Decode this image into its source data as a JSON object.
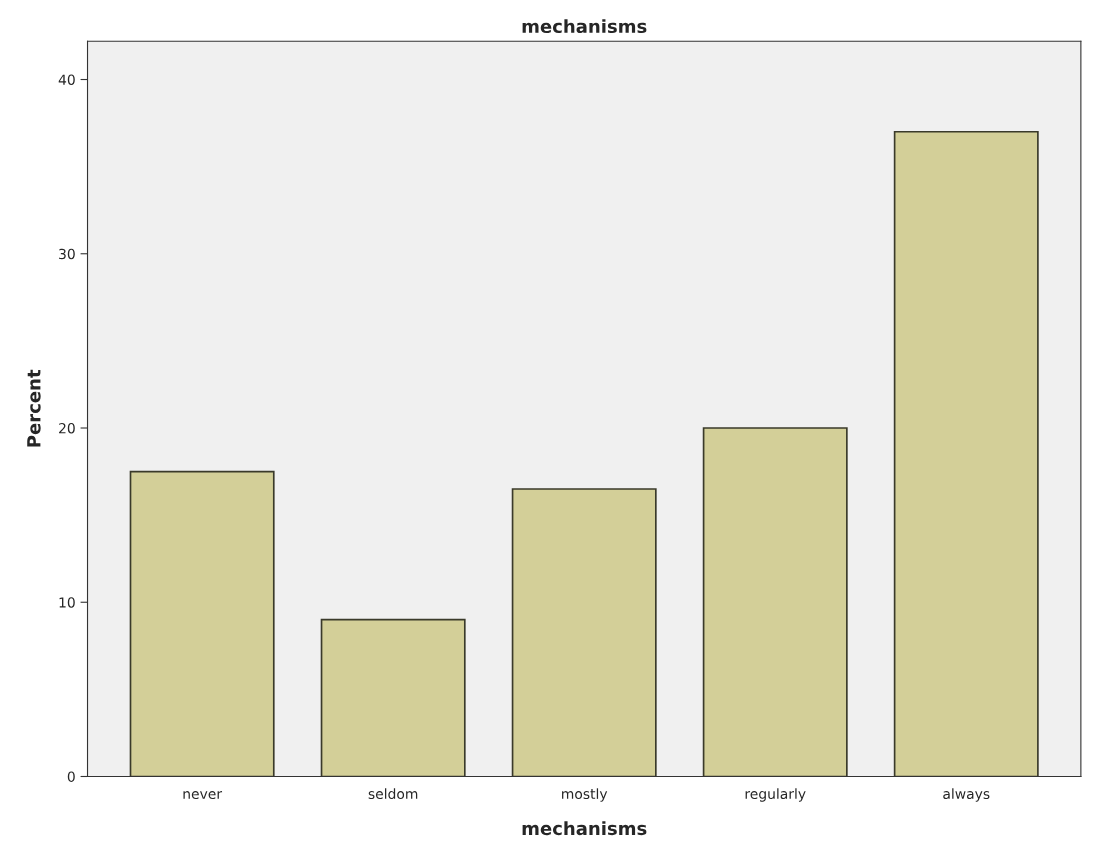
{
  "chart_data": {
    "type": "bar",
    "title": "mechanisms",
    "xlabel": "mechanisms",
    "ylabel": "Percent",
    "categories": [
      "never",
      "seldom",
      "mostly",
      "regularly",
      "always"
    ],
    "values": [
      17.5,
      9.0,
      16.5,
      20.0,
      37.0
    ],
    "color": "#d3cf98",
    "ylim": [
      0,
      42.2
    ],
    "yticks": [
      0,
      10,
      20,
      30,
      40
    ],
    "grid": false,
    "legend": false
  }
}
